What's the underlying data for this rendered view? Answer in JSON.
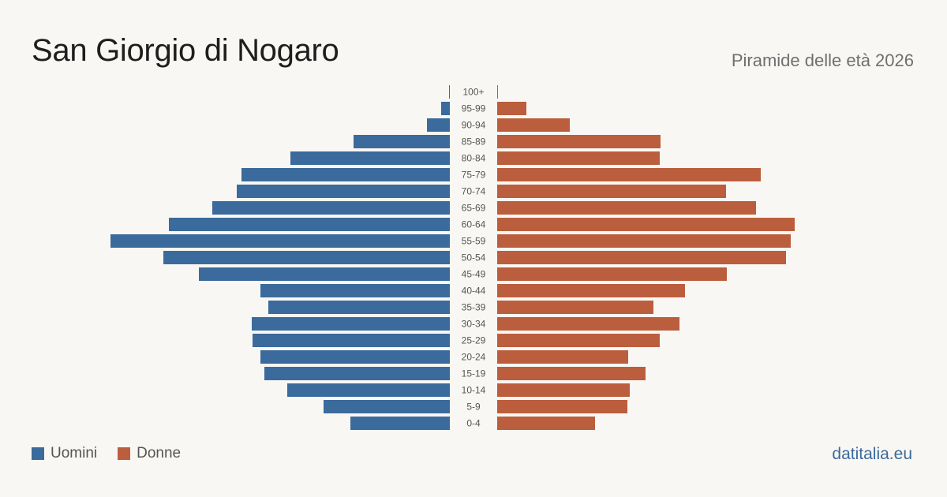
{
  "title": "San Giorgio di Nogaro",
  "subtitle": "Piramide delle età 2026",
  "source": "datitalia.eu",
  "legend": {
    "men": "Uomini",
    "women": "Donne"
  },
  "colors": {
    "men": "#3b6a9c",
    "women": "#bb5e3d",
    "background": "#f9f7f3"
  },
  "chart_data": {
    "type": "bar",
    "orientation": "horizontal-pyramid",
    "categories": [
      "100+",
      "95-99",
      "90-94",
      "85-89",
      "80-84",
      "75-79",
      "70-74",
      "65-69",
      "60-64",
      "55-59",
      "50-54",
      "45-49",
      "40-44",
      "35-39",
      "30-34",
      "25-29",
      "20-24",
      "15-19",
      "10-14",
      "5-9",
      "0-4"
    ],
    "series": [
      {
        "name": "Uomini",
        "values": [
          1,
          11,
          29,
          122,
          202,
          264,
          270,
          301,
          356,
          430,
          363,
          318,
          240,
          230,
          251,
          250,
          240,
          235,
          206,
          160,
          126
        ]
      },
      {
        "name": "Donne",
        "values": [
          1,
          37,
          92,
          207,
          206,
          334,
          290,
          328,
          377,
          372,
          366,
          291,
          238,
          198,
          231,
          206,
          166,
          188,
          168,
          165,
          124
        ]
      }
    ],
    "xlim": [
      0,
      430
    ],
    "grid": false,
    "legend_position": "bottom-left"
  }
}
